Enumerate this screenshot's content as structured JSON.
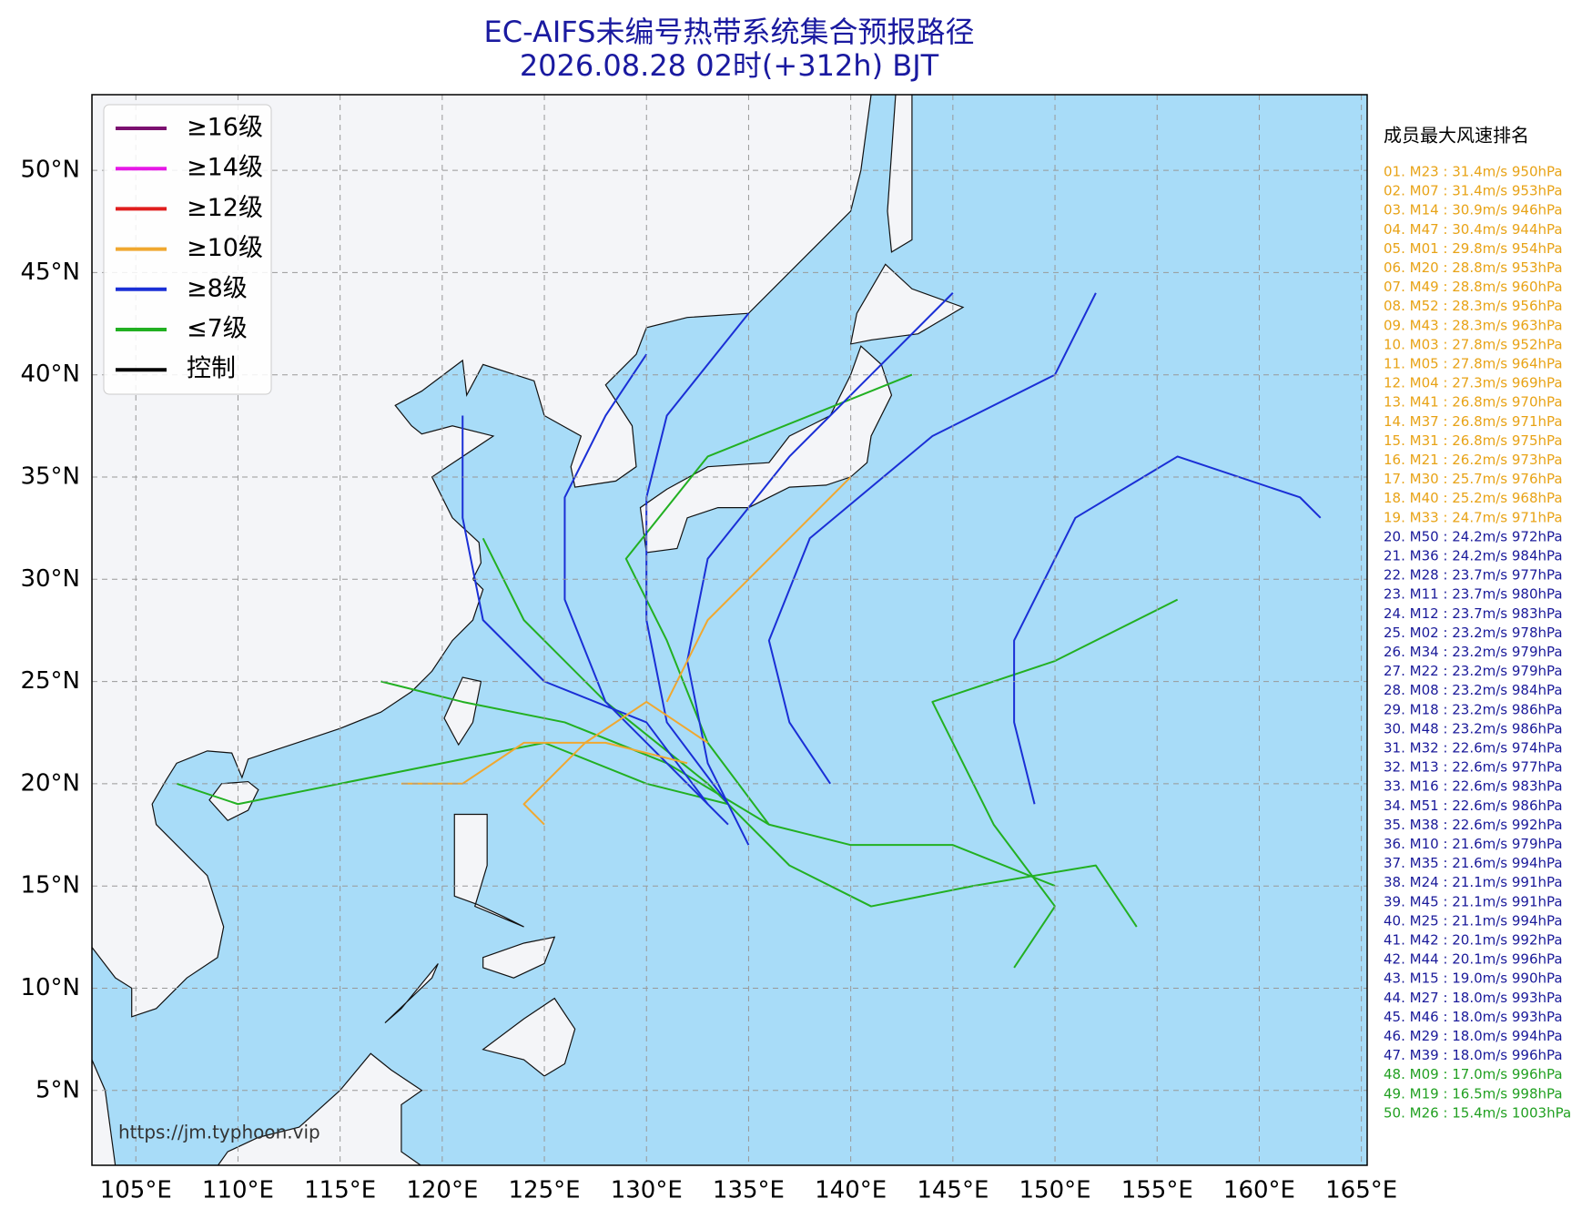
{
  "title_lines": [
    "EC-AIFS未编号热带系统集合预报路径",
    "2026.08.28 02时(+312h) BJT"
  ],
  "legend": [
    {
      "label": "≥16级",
      "color": "#7b1070"
    },
    {
      "label": "≥14级",
      "color": "#e619e6"
    },
    {
      "label": "≥12级",
      "color": "#e01e1e"
    },
    {
      "label": "≥10级",
      "color": "#f0a830"
    },
    {
      "label": "≥8级",
      "color": "#1a2fd6"
    },
    {
      "label": "≤7级",
      "color": "#22b022"
    },
    {
      "label": "控制",
      "color": "#000000"
    }
  ],
  "lat_ticks": [
    {
      "value": 5,
      "label": "5°N"
    },
    {
      "value": 10,
      "label": "10°N"
    },
    {
      "value": 15,
      "label": "15°N"
    },
    {
      "value": 20,
      "label": "20°N"
    },
    {
      "value": 25,
      "label": "25°N"
    },
    {
      "value": 30,
      "label": "30°N"
    },
    {
      "value": 35,
      "label": "35°N"
    },
    {
      "value": 40,
      "label": "40°N"
    },
    {
      "value": 45,
      "label": "45°N"
    },
    {
      "value": 50,
      "label": "50°N"
    }
  ],
  "lon_ticks": [
    {
      "value": 105,
      "label": "105°E"
    },
    {
      "value": 110,
      "label": "110°E"
    },
    {
      "value": 115,
      "label": "115°E"
    },
    {
      "value": 120,
      "label": "120°E"
    },
    {
      "value": 125,
      "label": "125°E"
    },
    {
      "value": 130,
      "label": "130°E"
    },
    {
      "value": 135,
      "label": "135°E"
    },
    {
      "value": 140,
      "label": "140°E"
    },
    {
      "value": 145,
      "label": "145°E"
    },
    {
      "value": 150,
      "label": "150°E"
    },
    {
      "value": 155,
      "label": "155°E"
    },
    {
      "value": 160,
      "label": "160°E"
    },
    {
      "value": 165,
      "label": "165°E"
    }
  ],
  "source": "https://jm.typhoon.vip",
  "ranking": {
    "title": "成员最大风速排名",
    "groups": [
      {
        "color": "#e8a317",
        "items": [
          "01. M23 : 31.4m/s 950hPa",
          "02. M07 : 31.4m/s 953hPa",
          "03. M14 : 30.9m/s 946hPa",
          "04. M47 : 30.4m/s 944hPa",
          "05. M01 : 29.8m/s 954hPa",
          "06. M20 : 28.8m/s 953hPa",
          "07. M49 : 28.8m/s 960hPa",
          "08. M52 : 28.3m/s 956hPa",
          "09. M43 : 28.3m/s 963hPa",
          "10. M03 : 27.8m/s 952hPa",
          "11. M05 : 27.8m/s 964hPa",
          "12. M04 : 27.3m/s 969hPa",
          "13. M41 : 26.8m/s 970hPa",
          "14. M37 : 26.8m/s 971hPa",
          "15. M31 : 26.8m/s 975hPa",
          "16. M21 : 26.2m/s 973hPa",
          "17. M30 : 25.7m/s 976hPa",
          "18. M40 : 25.2m/s 968hPa",
          "19. M33 : 24.7m/s 971hPa"
        ]
      },
      {
        "color": "#1a1a9a",
        "items": [
          "20. M50 : 24.2m/s 972hPa",
          "21. M36 : 24.2m/s 984hPa",
          "22. M28 : 23.7m/s 977hPa",
          "23. M11 : 23.7m/s 980hPa",
          "24. M12 : 23.7m/s 983hPa",
          "25. M02 : 23.2m/s 978hPa",
          "26. M34 : 23.2m/s 979hPa",
          "27. M22 : 23.2m/s 979hPa",
          "28. M08 : 23.2m/s 984hPa",
          "29. M18 : 23.2m/s 986hPa",
          "30. M48 : 23.2m/s 986hPa",
          "31. M32 : 22.6m/s 974hPa",
          "32. M13 : 22.6m/s 977hPa",
          "33. M16 : 22.6m/s 983hPa",
          "34. M51 : 22.6m/s 986hPa",
          "35. M38 : 22.6m/s 992hPa",
          "36. M10 : 21.6m/s 979hPa",
          "37. M35 : 21.6m/s 994hPa",
          "38. M24 : 21.1m/s 991hPa",
          "39. M45 : 21.1m/s 991hPa",
          "40. M25 : 21.1m/s 994hPa",
          "41. M42 : 20.1m/s 992hPa",
          "42. M44 : 20.1m/s 996hPa",
          "43. M15 : 19.0m/s 990hPa",
          "44. M27 : 18.0m/s 993hPa",
          "45. M46 : 18.0m/s 993hPa",
          "46. M29 : 18.0m/s 994hPa",
          "47. M39 : 18.0m/s 996hPa"
        ]
      },
      {
        "color": "#22a022",
        "items": [
          "48. M09 : 17.0m/s 996hPa",
          "49. M19 : 16.5m/s 998hPa",
          "50. M26 : 15.4m/s 1003hPa"
        ]
      }
    ]
  }
}
